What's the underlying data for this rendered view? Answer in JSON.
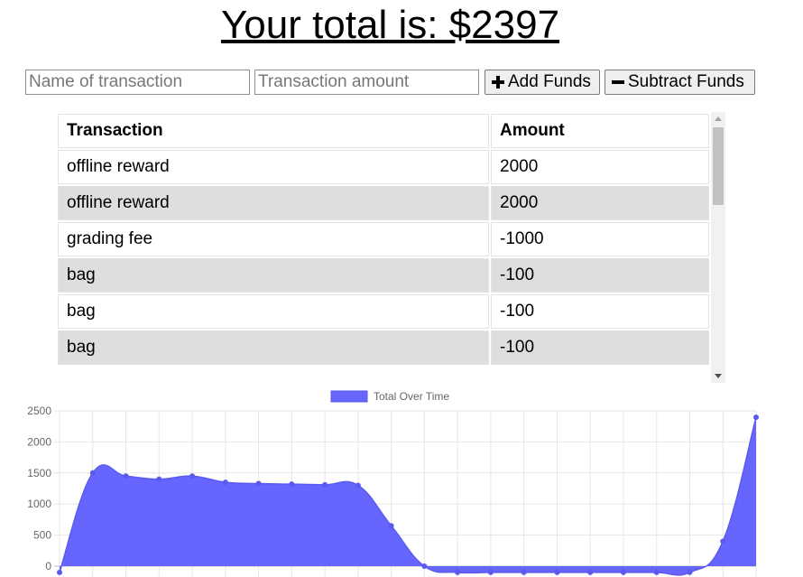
{
  "header": {
    "title": "Your total is: $2397"
  },
  "form": {
    "name_placeholder": "Name of transaction",
    "amount_placeholder": "Transaction amount",
    "add_label": "Add Funds",
    "subtract_label": "Subtract Funds",
    "add_icon": "plus-icon",
    "subtract_icon": "minus-icon"
  },
  "table": {
    "headers": [
      "Transaction",
      "Amount"
    ],
    "rows": [
      [
        "offline reward",
        "2000"
      ],
      [
        "offline reward",
        "2000"
      ],
      [
        "grading fee",
        "-1000"
      ],
      [
        "bag",
        "-100"
      ],
      [
        "bag",
        "-100"
      ],
      [
        "bag",
        "-100"
      ]
    ]
  },
  "chart_data": {
    "type": "area",
    "title": "",
    "xlabel": "",
    "ylabel": "",
    "series": [
      {
        "name": "Total Over Time",
        "color": "#6666ff",
        "values": [
          -100,
          1500,
          1450,
          1400,
          1450,
          1350,
          1330,
          1320,
          1310,
          1300,
          650,
          0,
          -100,
          -100,
          -100,
          -100,
          -100,
          -100,
          -100,
          -100,
          400,
          2397
        ]
      }
    ],
    "yticks": [
      0,
      500,
      1000,
      1500,
      2000,
      2500
    ],
    "ylim": [
      -200,
      2500
    ],
    "grid": true,
    "legend": "top"
  }
}
